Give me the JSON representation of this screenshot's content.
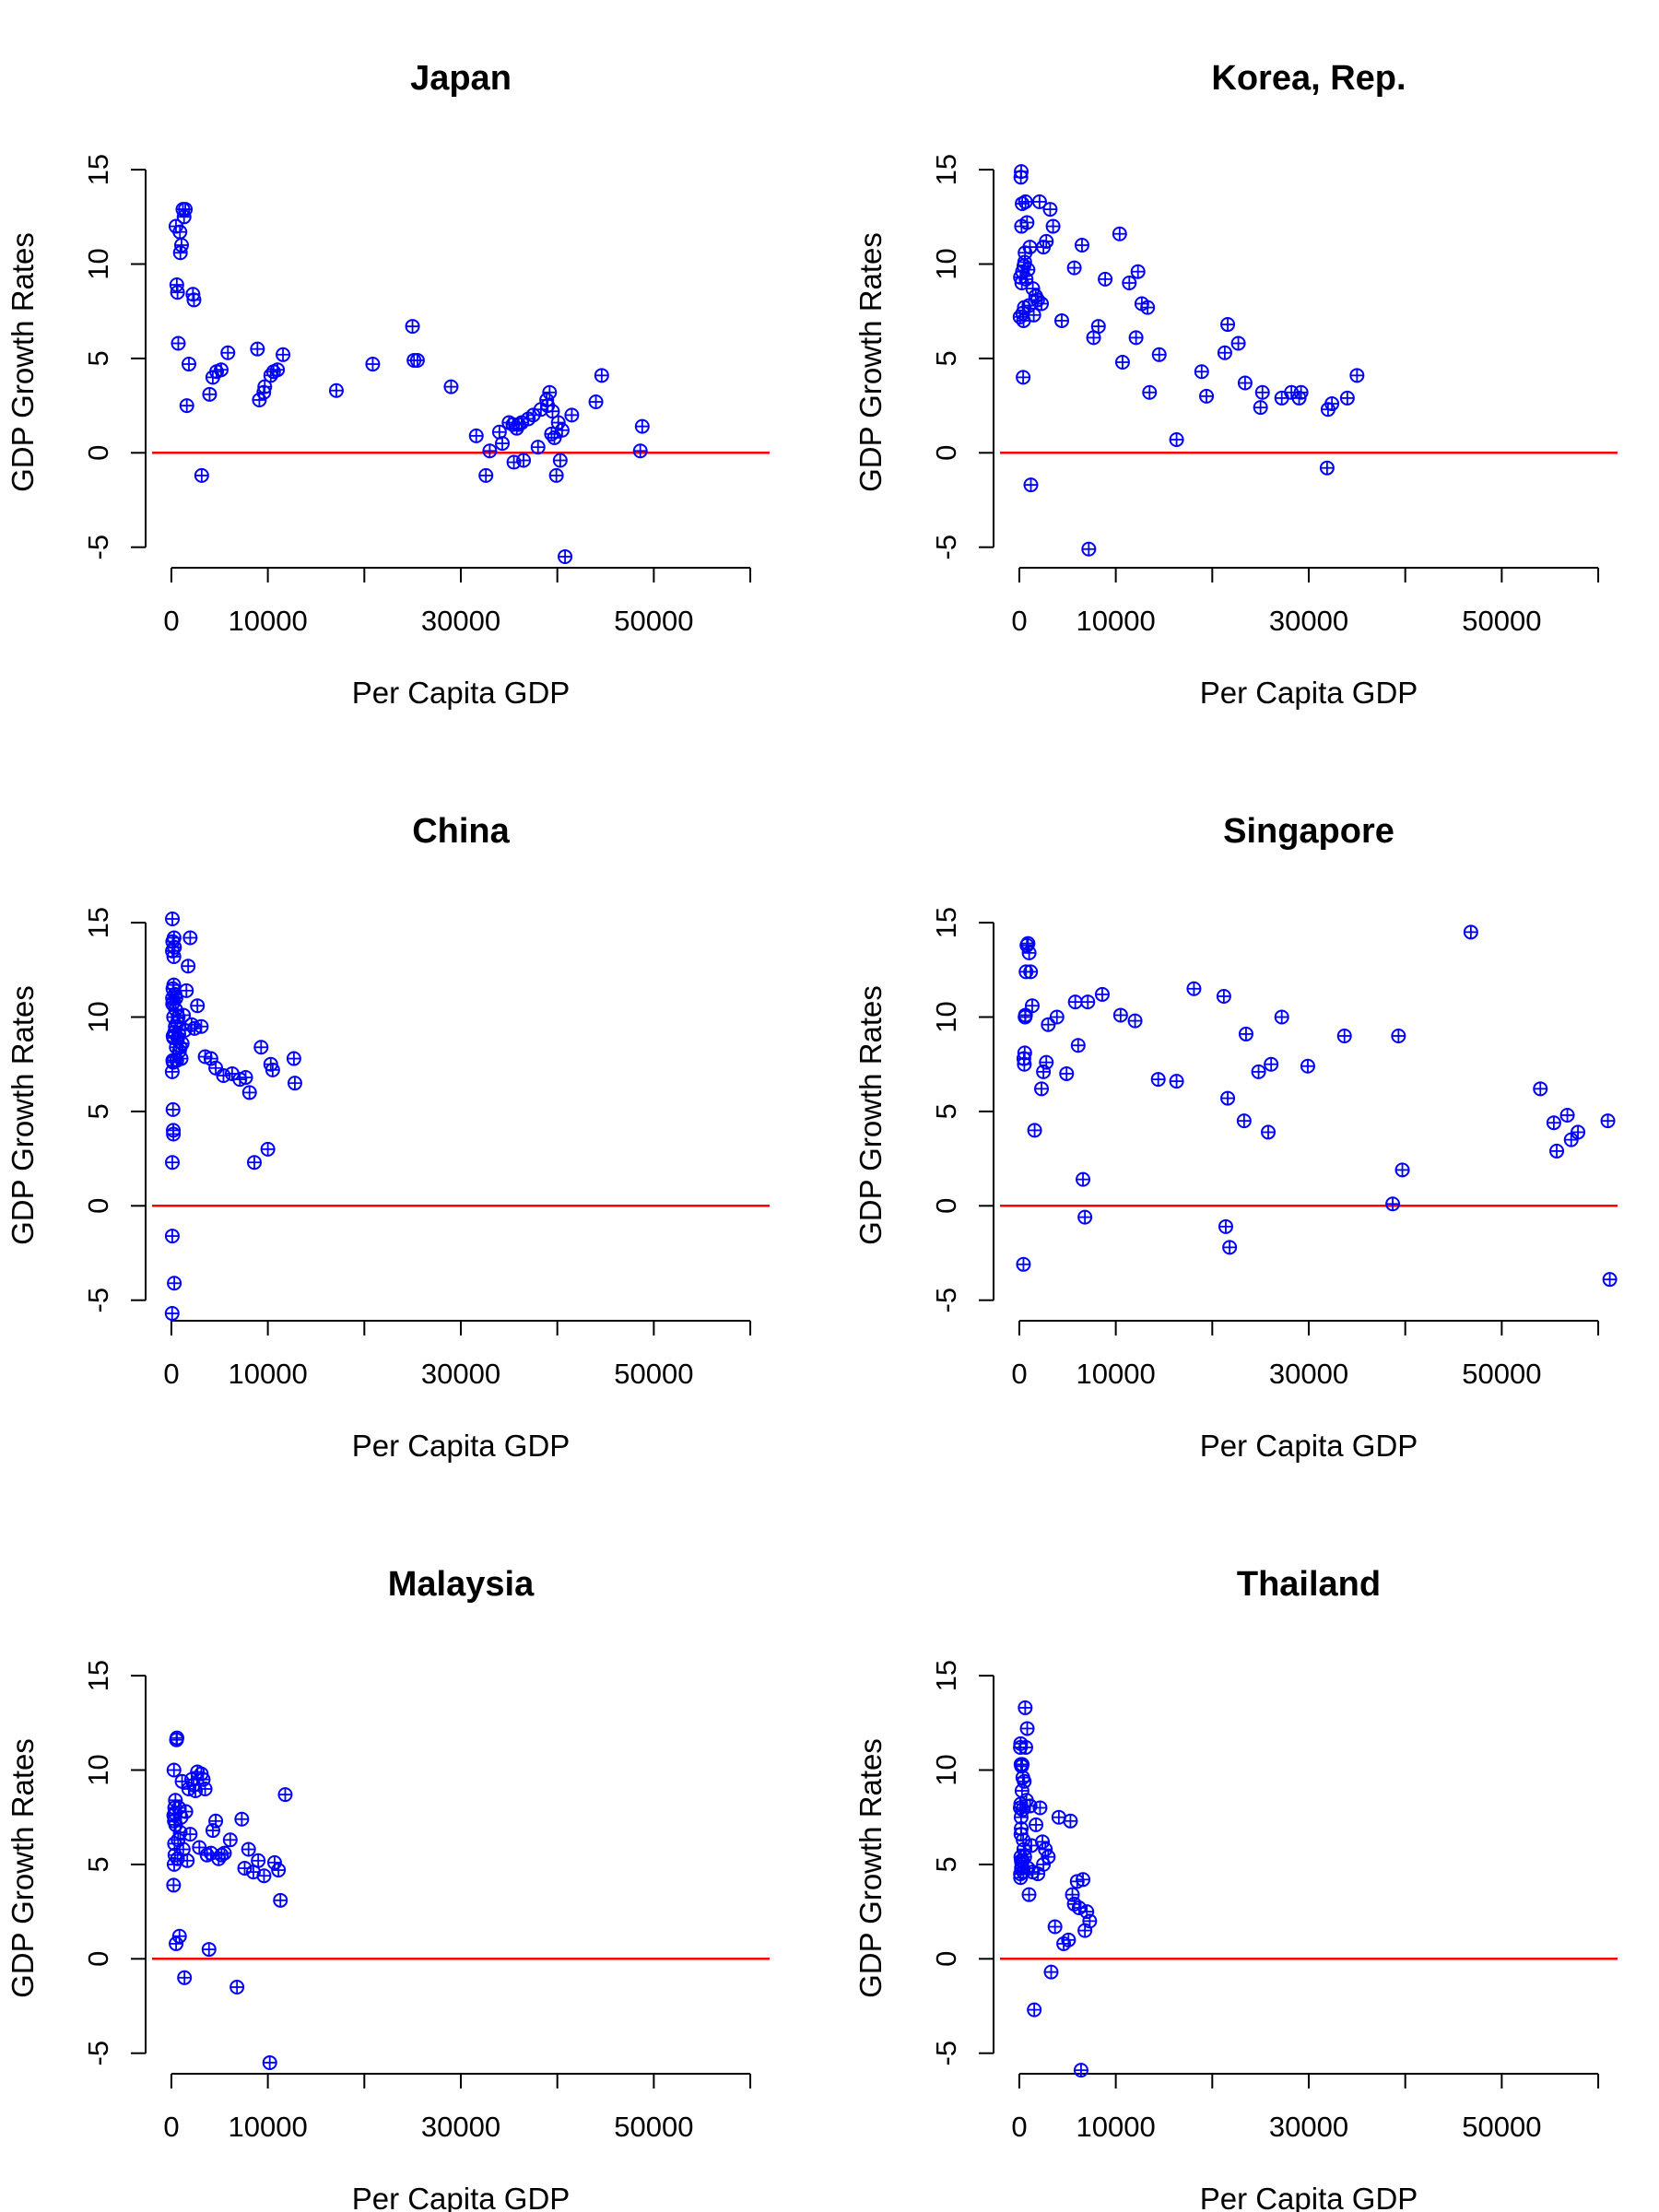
{
  "chart_data": [
    {
      "type": "scatter",
      "title": "Japan",
      "xlabel": "Per Capita GDP",
      "ylabel": "GDP Growth Rates",
      "xlim": [
        -2000,
        62000
      ],
      "ylim": [
        -5.6,
        15.2
      ],
      "xticks": [
        0,
        10000,
        20000,
        30000,
        40000,
        50000,
        60000
      ],
      "xtick_labels": [
        "0",
        "10000",
        "",
        "30000",
        "",
        "50000",
        ""
      ],
      "yticks": [
        -5,
        0,
        5,
        10,
        15
      ],
      "ytick_labels": [
        "-5",
        "0",
        "5",
        "10",
        "15"
      ],
      "reference_line": {
        "y": 0,
        "color": "#ff0000"
      },
      "point_color": "#0000ff",
      "x": [
        479,
        563,
        636,
        718,
        887,
        932,
        1054,
        1196,
        1316,
        1446,
        1602,
        1819,
        2235,
        2343,
        3143,
        3963,
        4294,
        4687,
        5162,
        5859,
        8920,
        9120,
        9580,
        9680,
        10300,
        10590,
        11000,
        11570,
        17100,
        20870,
        24990,
        25150,
        25500,
        28990,
        31600,
        32600,
        33000,
        34000,
        34300,
        35000,
        35400,
        35500,
        35800,
        36000,
        36300,
        36500,
        37000,
        37500,
        38000,
        38300,
        38900,
        39000,
        39200,
        39400,
        39500,
        39700,
        39900,
        40100,
        40300,
        40500,
        40800,
        41500,
        44000,
        44600,
        48600,
        48800
      ],
      "y": [
        12.0,
        8.9,
        8.5,
        5.8,
        11.7,
        10.6,
        11.0,
        12.9,
        12.5,
        12.9,
        2.5,
        4.7,
        8.4,
        8.1,
        -1.2,
        3.1,
        4.0,
        4.3,
        4.4,
        5.3,
        5.5,
        2.8,
        3.2,
        3.5,
        4.1,
        4.3,
        4.4,
        5.2,
        3.3,
        4.7,
        6.7,
        4.9,
        4.9,
        3.5,
        0.9,
        -1.2,
        0.1,
        1.1,
        0.5,
        1.6,
        1.5,
        -0.5,
        1.3,
        1.5,
        1.6,
        -0.4,
        1.8,
        2.0,
        0.3,
        2.3,
        2.8,
        2.5,
        3.2,
        1.0,
        2.2,
        0.8,
        -1.2,
        1.6,
        -0.4,
        1.2,
        -5.5,
        2.0,
        2.7,
        4.1,
        0.1,
        1.4
      ]
    },
    {
      "type": "scatter",
      "title": "Korea, Rep.",
      "xlabel": "Per Capita GDP",
      "ylabel": "GDP Growth Rates",
      "xlim": [
        -2000,
        62000
      ],
      "ylim": [
        -5.6,
        15.2
      ],
      "xticks": [
        0,
        10000,
        20000,
        30000,
        40000,
        50000,
        60000
      ],
      "xtick_labels": [
        "0",
        "10000",
        "",
        "30000",
        "",
        "50000",
        ""
      ],
      "yticks": [
        -5,
        0,
        5,
        10,
        15
      ],
      "ytick_labels": [
        "-5",
        "0",
        "5",
        "10",
        "15"
      ],
      "reference_line": {
        "y": 0,
        "color": "#ff0000"
      },
      "point_color": "#0000ff",
      "x": [
        80,
        120,
        160,
        200,
        230,
        260,
        300,
        330,
        360,
        400,
        440,
        480,
        520,
        560,
        600,
        640,
        700,
        800,
        900,
        1000,
        1100,
        1200,
        1400,
        1500,
        1700,
        1900,
        2100,
        2300,
        2500,
        2800,
        3200,
        3500,
        4400,
        5700,
        6500,
        7200,
        7700,
        8200,
        8900,
        10400,
        10700,
        11400,
        12100,
        12300,
        12700,
        13300,
        13500,
        14500,
        16300,
        18900,
        19400,
        21300,
        21600,
        22700,
        23400,
        25000,
        25200,
        27200,
        28200,
        29000,
        29200,
        31900,
        32000,
        32400,
        34000,
        35000
      ],
      "y": [
        7.2,
        9.3,
        14.6,
        14.9,
        12.0,
        9.0,
        13.2,
        9.6,
        7.4,
        4.0,
        7.0,
        9.9,
        7.7,
        10.1,
        10.6,
        13.3,
        9.2,
        12.2,
        9.7,
        7.8,
        10.9,
        -1.7,
        8.7,
        7.3,
        8.3,
        8.1,
        13.3,
        7.9,
        10.9,
        11.2,
        12.9,
        12.0,
        7.0,
        9.8,
        11.0,
        -5.1,
        6.1,
        6.7,
        9.2,
        11.6,
        4.8,
        9.0,
        6.1,
        9.6,
        7.9,
        7.7,
        3.2,
        5.2,
        0.7,
        4.3,
        3.0,
        5.3,
        6.8,
        5.8,
        3.7,
        2.4,
        3.2,
        2.9,
        3.2,
        2.9,
        3.2,
        -0.8,
        2.3,
        2.6,
        2.9,
        4.1
      ]
    },
    {
      "type": "scatter",
      "title": "China",
      "xlabel": "Per Capita GDP",
      "ylabel": "GDP Growth Rates",
      "xlim": [
        -2000,
        62000
      ],
      "ylim": [
        -5.6,
        15.2
      ],
      "xticks": [
        0,
        10000,
        20000,
        30000,
        40000,
        50000,
        60000
      ],
      "xtick_labels": [
        "0",
        "10000",
        "",
        "30000",
        "",
        "50000",
        ""
      ],
      "yticks": [
        -5,
        0,
        5,
        10,
        15
      ],
      "ytick_labels": [
        "-5",
        "0",
        "5",
        "10",
        "15"
      ],
      "reference_line": {
        "y": 0,
        "color": "#ff0000"
      },
      "point_color": "#0000ff",
      "x": [
        80,
        90,
        95,
        100,
        105,
        110,
        120,
        130,
        140,
        150,
        160,
        170,
        180,
        190,
        200,
        210,
        220,
        230,
        240,
        250,
        260,
        280,
        300,
        320,
        350,
        380,
        410,
        440,
        470,
        510,
        560,
        610,
        660,
        710,
        770,
        840,
        920,
        1010,
        1120,
        1250,
        1400,
        1560,
        1740,
        1950,
        2100,
        2400,
        2700,
        3100,
        3500,
        4100,
        4600,
        5400,
        6300,
        7100,
        7700,
        8100,
        8600,
        9300,
        10000,
        10300,
        10500,
        12700,
        12800
      ],
      "y": [
        -5.7,
        7.1,
        -1.6,
        2.3,
        15.2,
        13.5,
        11.0,
        10.7,
        14.0,
        7.7,
        11.5,
        5.1,
        9.0,
        7.6,
        4.0,
        3.8,
        8.9,
        10.0,
        10.8,
        11.7,
        13.2,
        14.2,
        -4.1,
        13.7,
        9.2,
        11.2,
        9.5,
        10.4,
        11.0,
        8.4,
        7.7,
        9.7,
        8.9,
        10.0,
        9.1,
        8.2,
        8.4,
        7.8,
        8.6,
        10.1,
        9.3,
        11.4,
        12.7,
        14.2,
        9.6,
        9.4,
        10.6,
        9.5,
        7.9,
        7.8,
        7.3,
        6.9,
        7.0,
        6.7,
        6.8,
        6.0,
        2.3,
        8.4,
        3.0,
        7.5,
        7.2,
        7.8,
        6.5
      ]
    },
    {
      "type": "scatter",
      "title": "Singapore",
      "xlabel": "Per Capita GDP",
      "ylabel": "GDP Growth Rates",
      "xlim": [
        -2000,
        62000
      ],
      "ylim": [
        -5.6,
        15.2
      ],
      "xticks": [
        0,
        10000,
        20000,
        30000,
        40000,
        50000,
        60000
      ],
      "xtick_labels": [
        "0",
        "10000",
        "",
        "30000",
        "",
        "50000",
        ""
      ],
      "yticks": [
        -5,
        0,
        5,
        10,
        15
      ],
      "ytick_labels": [
        "-5",
        "0",
        "5",
        "10",
        "15"
      ],
      "reference_line": {
        "y": 0,
        "color": "#ff0000"
      },
      "point_color": "#0000ff",
      "x": [
        430,
        470,
        520,
        560,
        600,
        640,
        700,
        790,
        900,
        1020,
        1170,
        1340,
        1590,
        2300,
        2500,
        2800,
        3000,
        3900,
        4900,
        5800,
        6100,
        6600,
        6800,
        7100,
        8600,
        10500,
        12000,
        14400,
        16300,
        18100,
        21200,
        21400,
        21600,
        21800,
        23300,
        23500,
        24800,
        25800,
        26100,
        27200,
        29900,
        33700,
        38700,
        39300,
        39700,
        46800,
        54000,
        55400,
        55700,
        56800,
        57200,
        57900,
        61000,
        61200
      ],
      "y": [
        -3.1,
        7.8,
        7.5,
        8.1,
        10.0,
        10.1,
        12.4,
        13.8,
        13.9,
        13.4,
        12.4,
        10.6,
        4.0,
        6.2,
        7.1,
        7.6,
        9.6,
        10.0,
        7.0,
        10.8,
        8.5,
        1.4,
        -0.6,
        10.8,
        11.2,
        10.1,
        9.8,
        6.7,
        6.6,
        11.5,
        11.1,
        -1.1,
        5.7,
        -2.2,
        4.5,
        9.1,
        7.1,
        3.9,
        7.5,
        10.0,
        7.4,
        9.0,
        0.1,
        9.0,
        1.9,
        14.5,
        6.2,
        4.4,
        2.9,
        4.8,
        3.5,
        3.9,
        4.5,
        -3.9
      ]
    },
    {
      "type": "scatter",
      "title": "Malaysia",
      "xlabel": "Per Capita GDP",
      "ylabel": "GDP Growth Rates",
      "xlim": [
        -2000,
        62000
      ],
      "ylim": [
        -5.6,
        15.2
      ],
      "xticks": [
        0,
        10000,
        20000,
        30000,
        40000,
        50000,
        60000
      ],
      "xtick_labels": [
        "0",
        "10000",
        "",
        "30000",
        "",
        "50000",
        ""
      ],
      "yticks": [
        -5,
        0,
        5,
        10,
        15
      ],
      "ytick_labels": [
        "-5",
        "0",
        "5",
        "10",
        "15"
      ],
      "reference_line": {
        "y": 0,
        "color": "#ff0000"
      },
      "point_color": "#0000ff",
      "x": [
        230,
        250,
        270,
        290,
        310,
        330,
        350,
        370,
        390,
        420,
        450,
        490,
        530,
        580,
        640,
        700,
        770,
        840,
        920,
        1010,
        1110,
        1230,
        1360,
        1500,
        1650,
        1800,
        1950,
        2100,
        2300,
        2500,
        2700,
        2900,
        3100,
        3300,
        3500,
        3700,
        3900,
        4100,
        4300,
        4600,
        4900,
        5200,
        5500,
        6100,
        6800,
        7300,
        7600,
        8000,
        8500,
        9000,
        9600,
        10200,
        10700,
        11100,
        11300,
        11800
      ],
      "y": [
        3.9,
        7.6,
        10.0,
        5.0,
        7.3,
        6.1,
        8.0,
        5.5,
        7.7,
        8.4,
        7.1,
        0.8,
        11.6,
        11.7,
        5.3,
        6.3,
        8.0,
        1.2,
        6.7,
        7.5,
        9.4,
        5.8,
        -1.0,
        7.8,
        5.2,
        9.0,
        6.6,
        9.5,
        9.2,
        8.9,
        9.9,
        5.9,
        9.8,
        9.5,
        9.0,
        5.5,
        0.5,
        5.6,
        6.8,
        7.3,
        5.3,
        5.5,
        5.6,
        6.3,
        -1.5,
        7.4,
        4.8,
        5.8,
        4.6,
        5.2,
        4.4,
        -5.5,
        5.1,
        4.7,
        3.1,
        8.7
      ]
    },
    {
      "type": "scatter",
      "title": "Thailand",
      "xlabel": "Per Capita GDP",
      "ylabel": "GDP Growth Rates",
      "xlim": [
        -2000,
        62000
      ],
      "ylim": [
        -5.6,
        15.2
      ],
      "xticks": [
        0,
        10000,
        20000,
        30000,
        40000,
        50000,
        60000
      ],
      "xtick_labels": [
        "0",
        "10000",
        "",
        "30000",
        "",
        "50000",
        ""
      ],
      "yticks": [
        -5,
        0,
        5,
        10,
        15
      ],
      "ytick_labels": [
        "-5",
        "0",
        "5",
        "10",
        "15"
      ],
      "reference_line": {
        "y": 0,
        "color": "#ff0000"
      },
      "point_color": "#0000ff",
      "x": [
        100,
        110,
        120,
        130,
        140,
        150,
        160,
        170,
        180,
        190,
        200,
        210,
        220,
        240,
        260,
        280,
        300,
        320,
        340,
        370,
        400,
        430,
        470,
        510,
        560,
        610,
        670,
        740,
        820,
        910,
        1010,
        1120,
        1250,
        1390,
        1550,
        1730,
        1930,
        2150,
        2400,
        2500,
        2700,
        3000,
        3300,
        3700,
        4100,
        4600,
        5100,
        5300,
        5500,
        5700,
        6000,
        6200,
        6400,
        6600,
        6800,
        7000,
        7300
      ],
      "y": [
        8.0,
        11.2,
        4.5,
        4.3,
        11.4,
        8.2,
        5.4,
        6.6,
        10.3,
        7.5,
        6.9,
        5.2,
        4.8,
        10.2,
        5.0,
        8.9,
        10.3,
        5.2,
        7.9,
        9.6,
        6.3,
        4.6,
        5.8,
        9.4,
        5.4,
        13.3,
        11.2,
        8.4,
        12.2,
        4.8,
        3.4,
        8.1,
        6.0,
        4.6,
        -2.7,
        7.1,
        4.5,
        8.0,
        6.2,
        5.0,
        5.8,
        5.4,
        -0.7,
        1.7,
        7.5,
        0.8,
        1.0,
        7.3,
        3.4,
        2.9,
        4.1,
        2.7,
        -5.9,
        4.2,
        1.5,
        2.5,
        2.0
      ]
    }
  ]
}
